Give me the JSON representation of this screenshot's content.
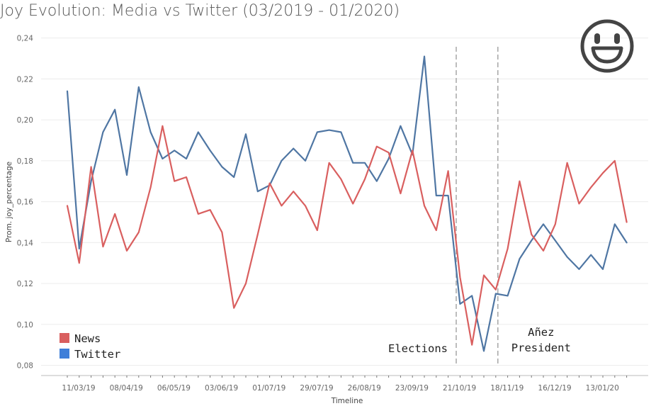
{
  "chart_data": {
    "type": "line",
    "title": "Joy Evolution: Media vs Twitter (03/2019 - 01/2020)",
    "xlabel": "Timeline",
    "ylabel": "Prom. joy_percentage",
    "ylim": [
      0.075,
      0.243
    ],
    "y_ticks": [
      "0,08",
      "0,10",
      "0,12",
      "0,14",
      "0,16",
      "0,18",
      "0,20",
      "0,22",
      "0,24"
    ],
    "x_ticks": [
      "11/03/19",
      "08/04/19",
      "06/05/19",
      "03/06/19",
      "01/07/19",
      "29/07/19",
      "26/08/19",
      "23/09/19",
      "21/10/19",
      "18/11/19",
      "16/12/19",
      "13/01/20"
    ],
    "grid": true,
    "legend_position": "bottom-left",
    "series": [
      {
        "name": "News",
        "color": "#d95f5f",
        "values": [
          0.158,
          0.13,
          0.177,
          0.138,
          0.154,
          0.136,
          0.145,
          0.167,
          0.197,
          0.17,
          0.172,
          0.154,
          0.156,
          0.145,
          0.108,
          0.12,
          0.144,
          0.169,
          0.158,
          0.165,
          0.158,
          0.146,
          0.179,
          0.171,
          0.159,
          0.171,
          0.187,
          0.184,
          0.164,
          0.185,
          0.158,
          0.146,
          0.175,
          0.123,
          0.09,
          0.124,
          0.117,
          0.137,
          0.17,
          0.144,
          0.136,
          0.149,
          0.179,
          0.159,
          0.167,
          0.174,
          0.18,
          0.15
        ]
      },
      {
        "name": "Twitter",
        "color": "#4f76a3",
        "values": [
          0.214,
          0.137,
          0.17,
          0.194,
          0.205,
          0.173,
          0.216,
          0.194,
          0.181,
          0.185,
          0.181,
          0.194,
          0.185,
          0.177,
          0.172,
          0.193,
          0.165,
          0.168,
          0.18,
          0.186,
          0.18,
          0.194,
          0.195,
          0.194,
          0.179,
          0.179,
          0.17,
          0.181,
          0.197,
          0.183,
          0.231,
          0.163,
          0.163,
          0.11,
          0.114,
          0.087,
          0.115,
          0.114,
          0.132,
          0.141,
          0.149,
          0.141,
          0.133,
          0.127,
          0.134,
          0.127,
          0.149,
          0.14
        ]
      }
    ],
    "annotations": [
      {
        "label": "Elections",
        "after_index": 33
      },
      {
        "label_lines": [
          "Añez",
          "President"
        ],
        "after_index": 36
      }
    ]
  },
  "icons": {
    "emoji": "smiling-face-icon"
  }
}
